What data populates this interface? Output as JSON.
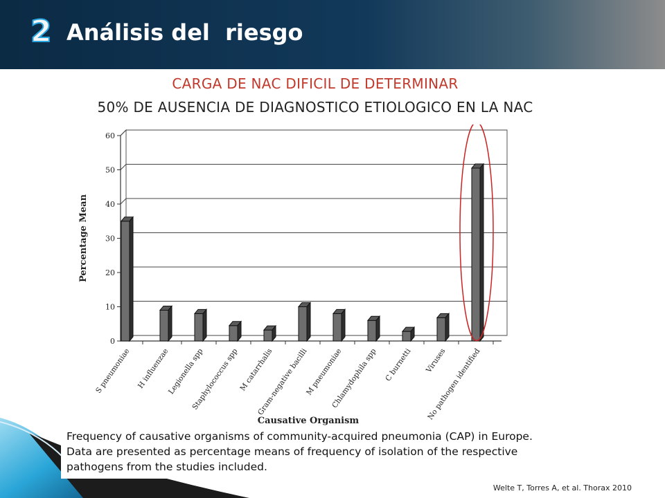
{
  "slide": {
    "number": "2",
    "title": "Análisis del  riesgo",
    "subtitle_red": "CARGA DE NAC DIFICIL DE DETERMINAR",
    "subtitle_black": "50% DE AUSENCIA DE DIAGNOSTICO ETIOLOGICO EN LA NAC",
    "caption": "Frequency of causative organisms of community-acquired pneumonia (CAP) in Europe. Data are presented as percentage means of frequency of isolation of the respective pathogens from the studies included.",
    "citation": "Welte T, Torres A, et  al. Thorax 2010"
  },
  "colors": {
    "header_dark": "#0b2a44",
    "accent_blue": "#29a6e0",
    "subtitle_red": "#c0392b",
    "bar_fill": "#6e6e6e",
    "highlight_ellipse": "#cc2222"
  },
  "chart_data": {
    "type": "bar",
    "title": "",
    "xlabel": "Causative Organism",
    "ylabel": "Percentage Mean",
    "ylim": [
      0,
      60
    ],
    "yticks": [
      "0",
      "10",
      "20",
      "30",
      "40",
      "50",
      "60"
    ],
    "grid": true,
    "categories": [
      "S pneumoniae",
      "H influenzae",
      "Legionella spp",
      "Staphylococcus spp",
      "M catarrhalis",
      "Gram-negative bacilli",
      "M pneumoniae",
      "Chlamydophila spp",
      "C burnetti",
      "Viruses",
      "No pathogen identified"
    ],
    "values": [
      35,
      9,
      8,
      4.5,
      3.2,
      10,
      8,
      6,
      2.8,
      6.8,
      50.5
    ],
    "highlighted_category": "No pathogen identified"
  }
}
